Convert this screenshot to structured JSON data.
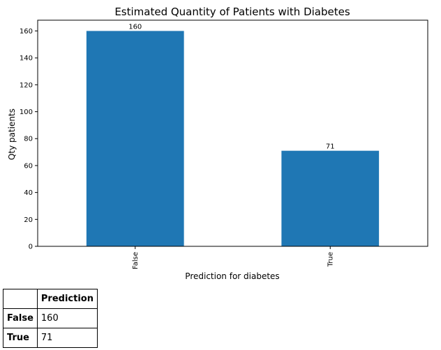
{
  "chart_data": {
    "type": "bar",
    "title": "Estimated Quantity of Patients with Diabetes",
    "xlabel": "Prediction for diabetes",
    "ylabel": "Qty patients",
    "categories": [
      "False",
      "True"
    ],
    "values": [
      160,
      71
    ],
    "data_labels": [
      "160",
      "71"
    ],
    "ylim": [
      0,
      168
    ],
    "yticks": [
      0,
      20,
      40,
      60,
      80,
      100,
      120,
      140,
      160
    ],
    "bar_color": "#1f77b4",
    "grid": false
  },
  "table": {
    "header": "Prediction",
    "rows": [
      {
        "label": "False",
        "value": "160"
      },
      {
        "label": "True",
        "value": "71"
      }
    ]
  }
}
